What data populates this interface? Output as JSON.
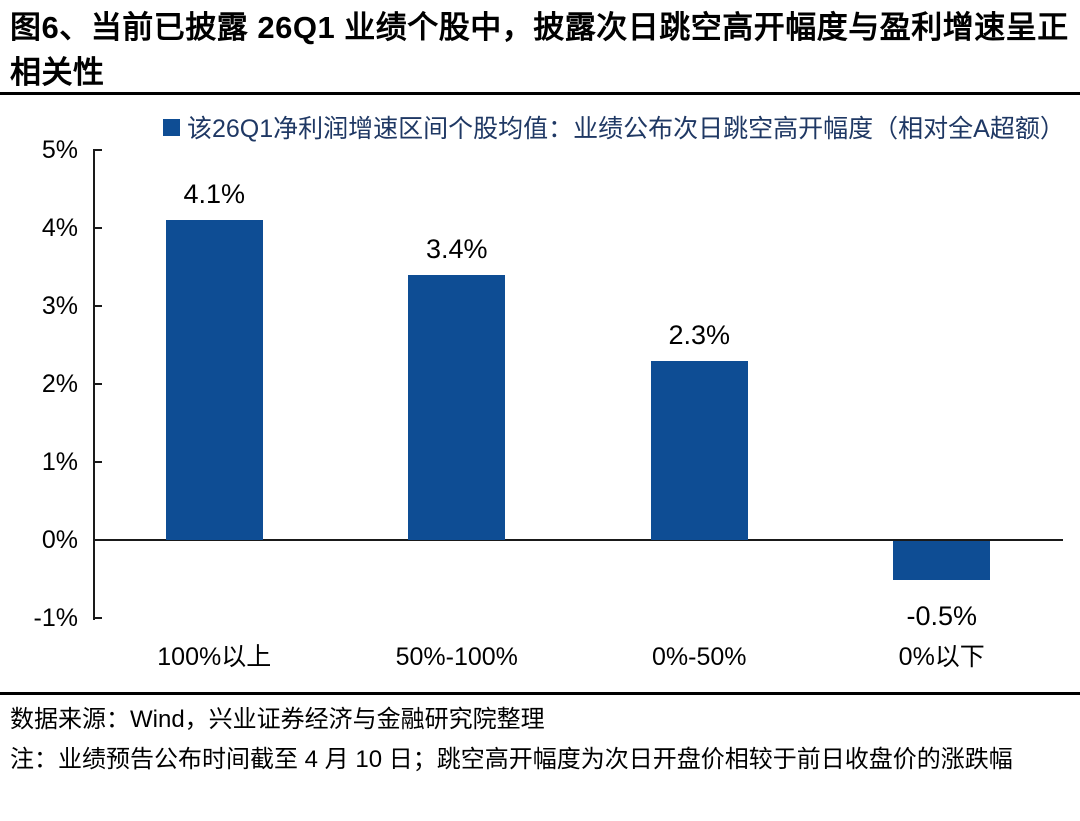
{
  "figure": {
    "title": "图6、当前已披露 26Q1 业绩个股中，披露次日跳空高开幅度与盈利增速呈正相关性",
    "source_line": "数据来源：Wind，兴业证券经济与金融研究院整理",
    "note_line": "注：业绩预告公布时间截至 4 月 10 日；跳空高开幅度为次日开盘价相较于前日收盘价的涨跌幅"
  },
  "chart_data": {
    "type": "bar",
    "title": "",
    "legend": "该26Q1净利润增速区间个股均值：业绩公布次日跳空高开幅度（相对全A超额）",
    "legend_position": "top",
    "categories": [
      "100%以上",
      "50%-100%",
      "0%-50%",
      "0%以下"
    ],
    "values": [
      4.1,
      3.4,
      2.3,
      -0.5
    ],
    "data_labels": [
      "4.1%",
      "3.4%",
      "2.3%",
      "-0.5%"
    ],
    "xlabel": "",
    "ylabel": "",
    "ylim": [
      -1,
      5
    ],
    "y_ticks": [
      {
        "value": 5,
        "label": "5%"
      },
      {
        "value": 4,
        "label": "4%"
      },
      {
        "value": 3,
        "label": "3%"
      },
      {
        "value": 2,
        "label": "2%"
      },
      {
        "value": 1,
        "label": "1%"
      },
      {
        "value": 0,
        "label": "0%"
      },
      {
        "value": -1,
        "label": "-1%"
      }
    ],
    "grid": false,
    "bar_color": "#0E4D94",
    "legend_text_color": "#1F3864",
    "axis_color": "#1a1a1a"
  }
}
